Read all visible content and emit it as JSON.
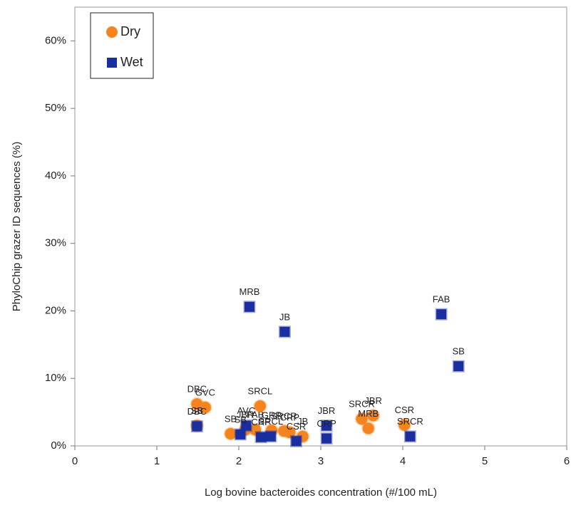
{
  "chart_data": {
    "type": "scatter",
    "xlabel": "Log bovine bacteroides concentration (#/100 mL)",
    "ylabel": "PhyloChip grazer ID sequences (%)",
    "xlim": [
      0,
      6
    ],
    "xticks": [
      0,
      1,
      2,
      3,
      4,
      5,
      6
    ],
    "ylim": [
      0,
      65
    ],
    "yticks": [
      {
        "value": 0,
        "label": "0%"
      },
      {
        "value": 10,
        "label": "10%"
      },
      {
        "value": 20,
        "label": "20%"
      },
      {
        "value": 30,
        "label": "30%"
      },
      {
        "value": 40,
        "label": "40%"
      },
      {
        "value": 50,
        "label": "50%"
      },
      {
        "value": 60,
        "label": "60%"
      }
    ],
    "legend": "upper left",
    "series": [
      {
        "name": "Dry",
        "color": "#f5841f",
        "marker": "circle",
        "x": [
          1.49,
          1.59,
          1.49,
          1.9,
          2.08,
          2.2,
          2.26,
          2.4,
          2.55,
          2.62,
          2.78,
          3.5,
          3.64,
          3.58,
          4.02
        ],
        "values": [
          6.2,
          5.7,
          3.0,
          1.8,
          2.4,
          2.4,
          5.9,
          2.3,
          2.2,
          2.0,
          1.4,
          4.0,
          4.5,
          2.6,
          3.1
        ],
        "labels": [
          "DBC",
          "GVC",
          "SB",
          "SB",
          "JBR",
          "FAB",
          "SRCL",
          "GRP",
          "SRCR",
          "CRP",
          "JB",
          "SRCR",
          "JBR",
          "MRB",
          "CSR"
        ]
      },
      {
        "name": "Wet",
        "color": "#1a2ea0",
        "marker": "square",
        "x": [
          1.49,
          2.09,
          2.02,
          2.27,
          2.39,
          2.13,
          2.56,
          2.7,
          3.07,
          3.07,
          4.47,
          4.68,
          4.09
        ],
        "values": [
          2.9,
          3.0,
          1.7,
          1.3,
          1.4,
          20.6,
          16.9,
          0.7,
          3.0,
          1.1,
          19.5,
          11.8,
          1.4
        ],
        "labels": [
          "DBC",
          "AVC",
          "SB",
          "CRP",
          "SRCL",
          "MRB",
          "JB",
          "CSR",
          "JBR",
          "CRP",
          "FAB",
          "SB",
          "SRCR"
        ]
      }
    ]
  }
}
